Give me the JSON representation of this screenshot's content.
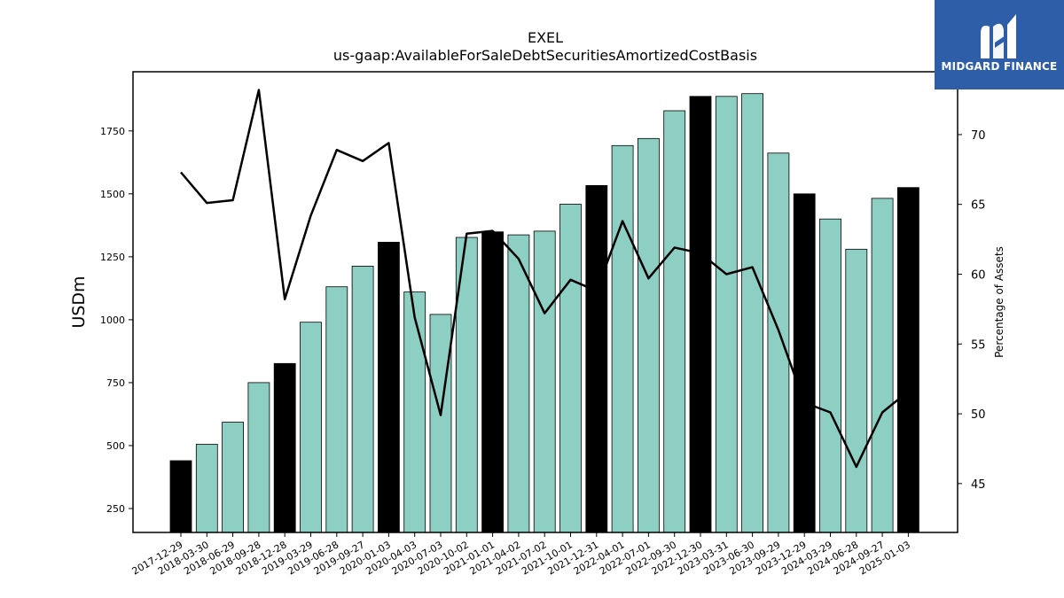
{
  "chart_data": {
    "type": "bar",
    "title": "EXEL",
    "subtitle": "us-gaap:AvailableForSaleDebtSecuritiesAmortizedCostBasis",
    "ylabel": "USDm",
    "y2label": "Percentage of Assets",
    "ylim": [
      155,
      1985
    ],
    "y2lim": [
      41.5,
      74.5
    ],
    "yticks": [
      250,
      500,
      750,
      1000,
      1250,
      1500,
      1750
    ],
    "y2ticks": [
      45,
      50,
      55,
      60,
      65,
      70
    ],
    "categories": [
      "2017-12-29",
      "2018-03-30",
      "2018-06-29",
      "2018-09-28",
      "2018-12-28",
      "2019-03-29",
      "2019-06-28",
      "2019-09-27",
      "2020-01-03",
      "2020-04-03",
      "2020-07-03",
      "2020-10-02",
      "2021-01-01",
      "2021-04-02",
      "2021-07-02",
      "2021-10-01",
      "2021-12-31",
      "2022-04-01",
      "2022-07-01",
      "2022-09-30",
      "2022-12-30",
      "2023-03-31",
      "2023-06-30",
      "2023-09-29",
      "2023-12-29",
      "2024-03-29",
      "2024-06-28",
      "2024-09-27",
      "2025-01-03"
    ],
    "series": [
      {
        "type": "bar",
        "values": [
          440,
          505,
          593,
          750,
          826,
          990,
          1131,
          1213,
          1308,
          1110,
          1021,
          1327,
          1349,
          1337,
          1352,
          1459,
          1533,
          1692,
          1720,
          1830,
          1887,
          1887,
          1898,
          1662,
          1500,
          1400,
          1280,
          1482,
          1525
        ],
        "highlight": [
          true,
          false,
          false,
          false,
          true,
          false,
          false,
          false,
          true,
          false,
          false,
          false,
          true,
          false,
          false,
          false,
          true,
          false,
          false,
          false,
          true,
          false,
          false,
          false,
          true,
          false,
          false,
          false,
          true
        ],
        "color": "#8ecfc4",
        "highlight_color": "#000000"
      },
      {
        "type": "line",
        "axis": "right",
        "values": [
          67.3,
          65.1,
          65.3,
          73.2,
          58.2,
          64.2,
          68.9,
          68.1,
          69.4,
          56.9,
          49.9,
          62.9,
          63.1,
          61.1,
          57.2,
          59.6,
          58.8,
          63.8,
          59.7,
          61.9,
          61.5,
          60.0,
          60.5,
          56.0,
          50.8,
          50.1,
          46.2,
          50.1,
          51.6
        ],
        "color": "#000000"
      }
    ],
    "grid": false,
    "legend": "none"
  },
  "logo": {
    "text": "MIDGARD FINANCE"
  }
}
